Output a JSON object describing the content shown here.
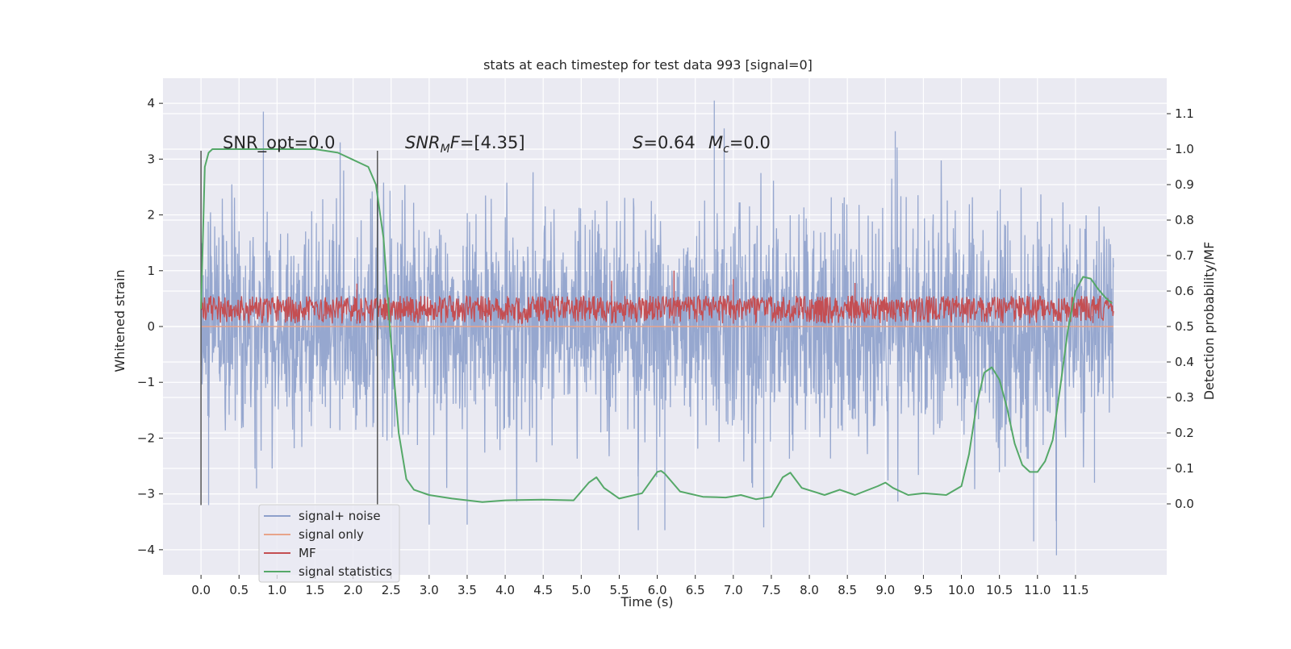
{
  "chart_data": {
    "type": "line",
    "title": "stats at each timestep for test data 993 [signal=0]",
    "xlabel": "Time (s)",
    "ylabel": "Whitened strain",
    "ylabel_right": "Detection probability/MF",
    "xlim": [
      -0.5,
      12.7
    ],
    "ylim": [
      -4.45,
      4.45
    ],
    "ylim_right": [
      -0.2,
      1.2
    ],
    "grid": true,
    "legend_position": "lower-left",
    "x_ticks": [
      "0.0",
      "0.5",
      "1.0",
      "1.5",
      "2.0",
      "2.5",
      "3.0",
      "3.5",
      "4.0",
      "4.5",
      "5.0",
      "5.5",
      "6.0",
      "6.5",
      "7.0",
      "7.5",
      "8.0",
      "8.5",
      "9.0",
      "9.5",
      "10.0",
      "10.5",
      "11.0",
      "11.5"
    ],
    "y_ticks": [
      "4",
      "3",
      "2",
      "1",
      "0",
      "−1",
      "−2",
      "−3",
      "−4"
    ],
    "y_ticks_right": [
      "1.1",
      "1.0",
      "0.9",
      "0.8",
      "0.7",
      "0.6",
      "0.5",
      "0.4",
      "0.3",
      "0.2",
      "0.1",
      "0.0"
    ],
    "annotations": {
      "snr_opt": "SNR_opt=0.0",
      "snr_mf_name": "SNR",
      "snr_mf_sub": "M",
      "snr_mf_name2": "F",
      "snr_mf_value": "=[4.35]",
      "s_name": "S",
      "s_value": "=0.64",
      "mc_name": "M",
      "mc_sub": "c",
      "mc_value": "=0.0"
    },
    "vlines_x": [
      0.0,
      2.32
    ],
    "vlines_y": [
      -3.2,
      3.15
    ],
    "series": [
      {
        "name": "signal+ noise",
        "color": "#8da0cb",
        "axis": "left",
        "x_range": [
          0.0,
          12.0
        ],
        "typical_range": [
          -2.0,
          2.0
        ],
        "max": 4.05,
        "min": -4.1,
        "peaks": [
          [
            0.82,
            3.85
          ],
          [
            6.75,
            4.05
          ],
          [
            6.88,
            3.55
          ],
          [
            9.13,
            3.5
          ],
          [
            1.83,
            3.3
          ],
          [
            11.25,
            -4.1
          ],
          [
            10.95,
            -3.85
          ],
          [
            3.0,
            -3.55
          ],
          [
            6.1,
            -3.65
          ],
          [
            5.75,
            -3.65
          ],
          [
            7.4,
            -3.6
          ],
          [
            0.1,
            -3.2
          ],
          [
            3.5,
            -3.55
          ],
          [
            11.75,
            -2.8
          ],
          [
            0.73,
            -2.9
          ]
        ]
      },
      {
        "name": "signal only",
        "color": "#e8a48a",
        "axis": "left",
        "x": [
          0.0,
          12.0
        ],
        "y": [
          0.0,
          0.0
        ]
      },
      {
        "name": "MF",
        "color": "#c44e52",
        "axis": "left",
        "x_range": [
          0.0,
          12.0
        ],
        "typical_range": [
          0.05,
          0.55
        ],
        "peaks": [
          [
            6.22,
            1.0
          ],
          [
            7.0,
            0.85
          ],
          [
            5.4,
            0.82
          ],
          [
            8.6,
            0.78
          ],
          [
            2.05,
            0.77
          ]
        ]
      },
      {
        "name": "signal statistics",
        "color": "#55a868",
        "axis": "right",
        "x": [
          0.0,
          0.05,
          0.1,
          0.15,
          0.2,
          0.3,
          0.5,
          1.0,
          1.5,
          1.8,
          2.0,
          2.1,
          2.2,
          2.3,
          2.4,
          2.5,
          2.6,
          2.7,
          2.8,
          3.0,
          3.3,
          3.7,
          4.0,
          4.5,
          4.9,
          5.1,
          5.2,
          5.3,
          5.5,
          5.8,
          6.0,
          6.05,
          6.1,
          6.3,
          6.6,
          6.9,
          7.1,
          7.3,
          7.5,
          7.65,
          7.75,
          7.9,
          8.2,
          8.4,
          8.6,
          8.9,
          9.0,
          9.1,
          9.3,
          9.5,
          9.8,
          10.0,
          10.1,
          10.2,
          10.3,
          10.4,
          10.5,
          10.6,
          10.7,
          10.8,
          10.9,
          11.0,
          11.1,
          11.2,
          11.3,
          11.4,
          11.5,
          11.6,
          11.7,
          11.8,
          11.9,
          11.98
        ],
        "y": [
          0.55,
          0.95,
          0.99,
          1.0,
          1.0,
          1.0,
          1.0,
          1.0,
          1.0,
          0.99,
          0.97,
          0.96,
          0.95,
          0.9,
          0.75,
          0.45,
          0.2,
          0.07,
          0.04,
          0.025,
          0.015,
          0.005,
          0.01,
          0.012,
          0.01,
          0.06,
          0.075,
          0.045,
          0.015,
          0.03,
          0.09,
          0.093,
          0.085,
          0.035,
          0.02,
          0.018,
          0.025,
          0.013,
          0.02,
          0.075,
          0.088,
          0.045,
          0.025,
          0.04,
          0.025,
          0.05,
          0.06,
          0.045,
          0.025,
          0.03,
          0.025,
          0.05,
          0.14,
          0.28,
          0.37,
          0.385,
          0.35,
          0.27,
          0.17,
          0.11,
          0.09,
          0.09,
          0.12,
          0.18,
          0.33,
          0.49,
          0.6,
          0.64,
          0.635,
          0.605,
          0.58,
          0.565
        ]
      }
    ]
  }
}
